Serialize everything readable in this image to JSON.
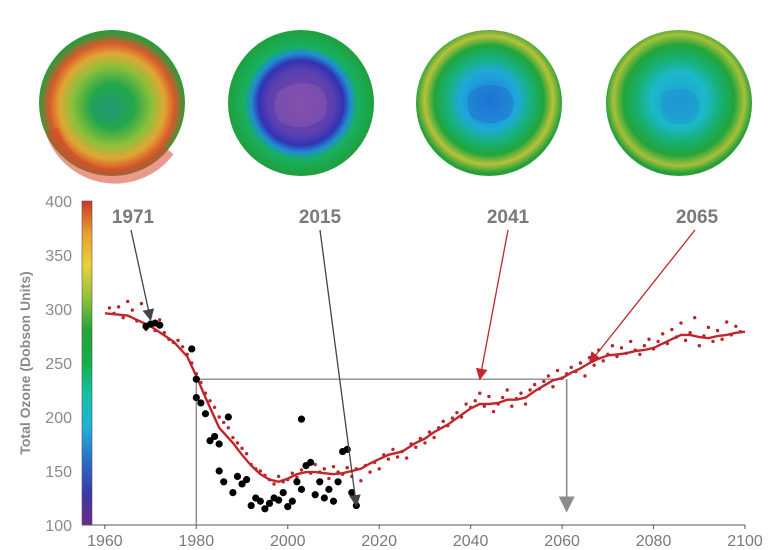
{
  "chart_data": {
    "type": "scatter",
    "ylabel": "Total Ozone (Dobson Units)",
    "xlim": [
      1955,
      2100
    ],
    "ylim": [
      100,
      400
    ],
    "x_ticks": [
      1960,
      1980,
      2000,
      2020,
      2040,
      2060,
      2080,
      2100
    ],
    "y_ticks": [
      100,
      150,
      200,
      250,
      300,
      350,
      400
    ],
    "grid": false,
    "colorbar": {
      "range": [
        100,
        400
      ],
      "stops": [
        "#6b2a8a",
        "#3a3aa8",
        "#2a6ec8",
        "#1fb0d8",
        "#16c0a8",
        "#12b04a",
        "#23a43a",
        "#8ec03a",
        "#e8d23a",
        "#e8a030",
        "#c83a28"
      ]
    },
    "colors": {
      "observed": "#000000",
      "model_points": "#b8242a",
      "model_line": "#c0262c",
      "arrow_gray": "#444444",
      "arrow_red": "#c0262c",
      "guide": "#8c8c8c"
    },
    "maps": [
      {
        "year": "1971",
        "min_ozone_du": 285,
        "arrow_color": "gray",
        "target": [
          1970,
          290
        ]
      },
      {
        "year": "2015",
        "min_ozone_du": 120,
        "arrow_color": "gray",
        "target": [
          2015,
          118
        ]
      },
      {
        "year": "2041",
        "min_ozone_du": 230,
        "arrow_color": "red",
        "target": [
          2042,
          235
        ]
      },
      {
        "year": "2065",
        "min_ozone_du": 245,
        "arrow_color": "red",
        "target": [
          2066,
          250
        ]
      }
    ],
    "reference_level": {
      "value": 235,
      "x_start": 1980,
      "x_end": 2060
    },
    "return_marker": {
      "x": 2061,
      "y_from": 235,
      "y_to": 113
    },
    "series": [
      {
        "kind": "observed",
        "points": [
          [
            1969,
            284
          ],
          [
            1970,
            286
          ],
          [
            1971,
            287
          ],
          [
            1972,
            285
          ],
          [
            1979,
            263
          ],
          [
            1980,
            218
          ],
          [
            1980,
            235
          ],
          [
            1981,
            213
          ],
          [
            1982,
            203
          ],
          [
            1983,
            178
          ],
          [
            1984,
            182
          ],
          [
            1985,
            175
          ],
          [
            1985,
            150
          ],
          [
            1986,
            140
          ],
          [
            1987,
            200
          ],
          [
            1988,
            130
          ],
          [
            1989,
            145
          ],
          [
            1990,
            138
          ],
          [
            1991,
            142
          ],
          [
            1992,
            118
          ],
          [
            1993,
            125
          ],
          [
            1994,
            122
          ],
          [
            1995,
            115
          ],
          [
            1996,
            120
          ],
          [
            1997,
            125
          ],
          [
            1998,
            123
          ],
          [
            1999,
            130
          ],
          [
            2000,
            117
          ],
          [
            2001,
            122
          ],
          [
            2002,
            140
          ],
          [
            2003,
            133
          ],
          [
            2003,
            198
          ],
          [
            2004,
            155
          ],
          [
            2005,
            158
          ],
          [
            2006,
            128
          ],
          [
            2007,
            140
          ],
          [
            2008,
            125
          ],
          [
            2009,
            133
          ],
          [
            2010,
            122
          ],
          [
            2011,
            140
          ],
          [
            2012,
            168
          ],
          [
            2013,
            170
          ],
          [
            2014,
            130
          ],
          [
            2015,
            118
          ]
        ]
      },
      {
        "kind": "model_points",
        "points": [
          [
            1961,
            301
          ],
          [
            1962,
            296
          ],
          [
            1963,
            302
          ],
          [
            1964,
            292
          ],
          [
            1965,
            307
          ],
          [
            1966,
            299
          ],
          [
            1967,
            289
          ],
          [
            1968,
            305
          ],
          [
            1969,
            281
          ],
          [
            1970,
            293
          ],
          [
            1971,
            280
          ],
          [
            1972,
            290
          ],
          [
            1973,
            278
          ],
          [
            1974,
            272
          ],
          [
            1975,
            269
          ],
          [
            1976,
            271
          ],
          [
            1977,
            265
          ],
          [
            1978,
            258
          ],
          [
            1979,
            250
          ],
          [
            1980,
            240
          ],
          [
            1981,
            232
          ],
          [
            1982,
            222
          ],
          [
            1983,
            215
          ],
          [
            1984,
            209
          ],
          [
            1985,
            200
          ],
          [
            1986,
            195
          ],
          [
            1987,
            190
          ],
          [
            1988,
            181
          ],
          [
            1989,
            176
          ],
          [
            1990,
            171
          ],
          [
            1991,
            166
          ],
          [
            1992,
            156
          ],
          [
            1993,
            152
          ],
          [
            1994,
            150
          ],
          [
            1995,
            146
          ],
          [
            1996,
            142
          ],
          [
            1997,
            138
          ],
          [
            1998,
            145
          ],
          [
            1999,
            140
          ],
          [
            2000,
            142
          ],
          [
            2001,
            148
          ],
          [
            2002,
            144
          ],
          [
            2003,
            151
          ],
          [
            2004,
            155
          ],
          [
            2005,
            148
          ],
          [
            2006,
            156
          ],
          [
            2007,
            149
          ],
          [
            2008,
            152
          ],
          [
            2009,
            143
          ],
          [
            2010,
            154
          ],
          [
            2011,
            149
          ],
          [
            2012,
            147
          ],
          [
            2013,
            153
          ],
          [
            2014,
            145
          ],
          [
            2015,
            152
          ],
          [
            2016,
            141
          ],
          [
            2017,
            155
          ],
          [
            2018,
            149
          ],
          [
            2019,
            158
          ],
          [
            2020,
            152
          ],
          [
            2021,
            165
          ],
          [
            2022,
            161
          ],
          [
            2023,
            170
          ],
          [
            2024,
            163
          ],
          [
            2025,
            168
          ],
          [
            2026,
            162
          ],
          [
            2027,
            175
          ],
          [
            2028,
            172
          ],
          [
            2029,
            180
          ],
          [
            2030,
            176
          ],
          [
            2031,
            186
          ],
          [
            2032,
            181
          ],
          [
            2033,
            190
          ],
          [
            2034,
            196
          ],
          [
            2035,
            192
          ],
          [
            2036,
            199
          ],
          [
            2037,
            204
          ],
          [
            2038,
            200
          ],
          [
            2039,
            212
          ],
          [
            2040,
            209
          ],
          [
            2041,
            215
          ],
          [
            2042,
            222
          ],
          [
            2043,
            210
          ],
          [
            2044,
            219
          ],
          [
            2045,
            205
          ],
          [
            2046,
            212
          ],
          [
            2047,
            218
          ],
          [
            2048,
            225
          ],
          [
            2049,
            210
          ],
          [
            2050,
            217
          ],
          [
            2051,
            222
          ],
          [
            2052,
            212
          ],
          [
            2053,
            225
          ],
          [
            2054,
            230
          ],
          [
            2055,
            226
          ],
          [
            2056,
            233
          ],
          [
            2057,
            238
          ],
          [
            2058,
            228
          ],
          [
            2059,
            243
          ],
          [
            2060,
            236
          ],
          [
            2061,
            240
          ],
          [
            2062,
            246
          ],
          [
            2063,
            242
          ],
          [
            2064,
            250
          ],
          [
            2065,
            238
          ],
          [
            2066,
            255
          ],
          [
            2067,
            248
          ],
          [
            2068,
            262
          ],
          [
            2069,
            252
          ],
          [
            2070,
            258
          ],
          [
            2071,
            266
          ],
          [
            2072,
            256
          ],
          [
            2073,
            264
          ],
          [
            2074,
            259
          ],
          [
            2075,
            270
          ],
          [
            2076,
            262
          ],
          [
            2077,
            258
          ],
          [
            2078,
            266
          ],
          [
            2079,
            272
          ],
          [
            2080,
            263
          ],
          [
            2081,
            270
          ],
          [
            2082,
            277
          ],
          [
            2083,
            268
          ],
          [
            2084,
            281
          ],
          [
            2085,
            274
          ],
          [
            2086,
            287
          ],
          [
            2087,
            271
          ],
          [
            2088,
            278
          ],
          [
            2089,
            292
          ],
          [
            2090,
            266
          ],
          [
            2091,
            275
          ],
          [
            2092,
            283
          ],
          [
            2093,
            270
          ],
          [
            2094,
            280
          ],
          [
            2095,
            272
          ],
          [
            2096,
            288
          ],
          [
            2097,
            276
          ],
          [
            2098,
            284
          ],
          [
            2099,
            279
          ]
        ]
      },
      {
        "kind": "model_line",
        "points": [
          [
            1960,
            296
          ],
          [
            1965,
            294
          ],
          [
            1970,
            284
          ],
          [
            1975,
            270
          ],
          [
            1978,
            256
          ],
          [
            1980,
            238
          ],
          [
            1982,
            218
          ],
          [
            1985,
            190
          ],
          [
            1988,
            176
          ],
          [
            1990,
            165
          ],
          [
            1992,
            155
          ],
          [
            1994,
            147
          ],
          [
            1996,
            142
          ],
          [
            1998,
            140
          ],
          [
            2000,
            143
          ],
          [
            2002,
            147
          ],
          [
            2004,
            149
          ],
          [
            2006,
            149
          ],
          [
            2008,
            148
          ],
          [
            2010,
            147
          ],
          [
            2012,
            148
          ],
          [
            2014,
            150
          ],
          [
            2016,
            152
          ],
          [
            2018,
            157
          ],
          [
            2020,
            161
          ],
          [
            2022,
            165
          ],
          [
            2025,
            168
          ],
          [
            2028,
            176
          ],
          [
            2030,
            180
          ],
          [
            2032,
            186
          ],
          [
            2035,
            193
          ],
          [
            2038,
            202
          ],
          [
            2040,
            208
          ],
          [
            2042,
            212
          ],
          [
            2044,
            212
          ],
          [
            2046,
            213
          ],
          [
            2048,
            216
          ],
          [
            2050,
            216
          ],
          [
            2052,
            218
          ],
          [
            2054,
            224
          ],
          [
            2056,
            229
          ],
          [
            2058,
            234
          ],
          [
            2060,
            236
          ],
          [
            2062,
            241
          ],
          [
            2064,
            245
          ],
          [
            2066,
            250
          ],
          [
            2068,
            254
          ],
          [
            2070,
            257
          ],
          [
            2072,
            258
          ],
          [
            2074,
            259
          ],
          [
            2076,
            261
          ],
          [
            2078,
            262
          ],
          [
            2080,
            264
          ],
          [
            2082,
            268
          ],
          [
            2084,
            272
          ],
          [
            2086,
            276
          ],
          [
            2088,
            276
          ],
          [
            2090,
            274
          ],
          [
            2092,
            273
          ],
          [
            2094,
            275
          ],
          [
            2096,
            276
          ],
          [
            2098,
            278
          ],
          [
            2100,
            279
          ]
        ]
      }
    ]
  }
}
